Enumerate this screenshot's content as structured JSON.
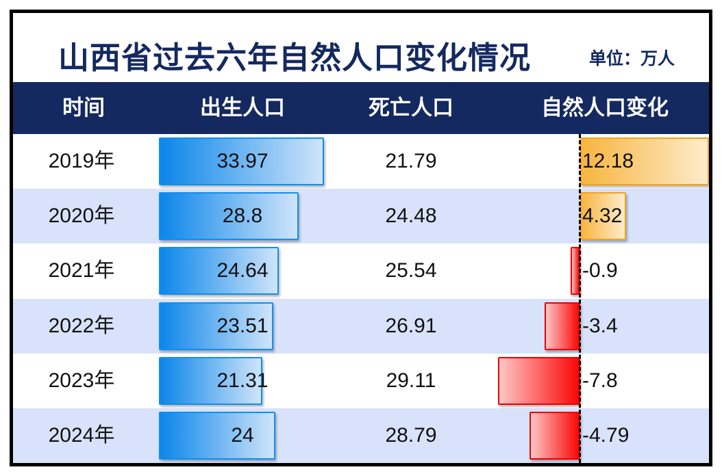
{
  "title": {
    "text": "山西省过去六年自然人口变化情况",
    "unit_label": "单位：万人"
  },
  "table": {
    "headers": [
      "时间",
      "出生人口",
      "死亡人口",
      "自然人口变化"
    ],
    "rows": [
      {
        "year": "2019年",
        "births": "33.97",
        "deaths": "21.79",
        "change": "12.18"
      },
      {
        "year": "2020年",
        "births": "28.8",
        "deaths": "24.48",
        "change": "4.32"
      },
      {
        "year": "2021年",
        "births": "24.64",
        "deaths": "25.54",
        "change": "-0.9"
      },
      {
        "year": "2022年",
        "births": "23.51",
        "deaths": "26.91",
        "change": "-3.4"
      },
      {
        "year": "2023年",
        "births": "21.31",
        "deaths": "29.11",
        "change": "-7.8"
      },
      {
        "year": "2024年",
        "births": "24",
        "deaths": "28.79",
        "change": "-4.79"
      }
    ]
  },
  "chart_data": {
    "type": "bar",
    "title": "山西省过去六年自然人口变化情况",
    "unit": "万人",
    "categories": [
      "2019年",
      "2020年",
      "2021年",
      "2022年",
      "2023年",
      "2024年"
    ],
    "series": [
      {
        "name": "出生人口",
        "values": [
          33.97,
          28.8,
          24.64,
          23.51,
          21.31,
          24
        ]
      },
      {
        "name": "死亡人口",
        "values": [
          21.79,
          24.48,
          25.54,
          26.91,
          29.11,
          28.79
        ]
      },
      {
        "name": "自然人口变化",
        "values": [
          12.18,
          4.32,
          -0.9,
          -3.4,
          -7.8,
          -4.79
        ]
      }
    ],
    "layout": {
      "orientation": "horizontal",
      "birth_bars_zero_based": true,
      "birth_bar_max_value": 33.97,
      "change_zero_axis_style": "dashed-vertical-line",
      "row_striping": "white / light-lavender alternating",
      "grid": false,
      "legend": false
    }
  },
  "colors": {
    "title_navy": "#14295f",
    "header_bg": "#14295f",
    "header_text": "#ffffff",
    "row_bg": "#ffffff",
    "row_alt_bg": "#d8e2fa",
    "birth_bar_start": "#0b86ea",
    "birth_bar_end": "#cfe4fa",
    "birth_bar_border": "#0d8ff2",
    "positive_bar_start": "#f8b540",
    "positive_bar_end": "#fdeccb",
    "positive_bar_border": "#f2a21e",
    "negative_bar_start": "#ffc6c6",
    "negative_bar_end": "#fa0606",
    "negative_bar_border": "#ee0000",
    "outer_border": "#000000",
    "data_text": "#111111"
  }
}
